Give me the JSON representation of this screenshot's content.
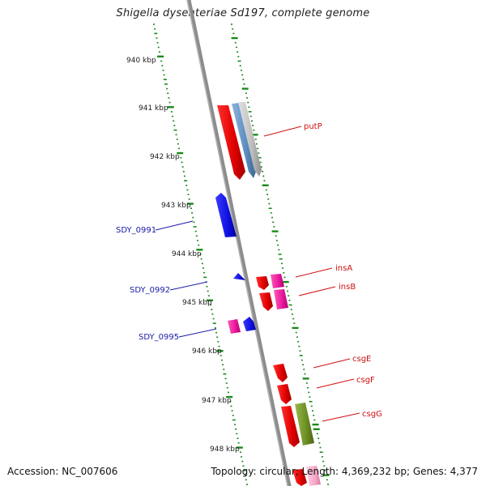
{
  "title": "Shigella dysenteriae Sd197, complete genome",
  "footer": {
    "accession": "Accession: NC_007606",
    "topology": "Topology: circular; Length: 4,369,232 bp; Genes: 4,377"
  },
  "colors": {
    "backbone": "#8c8c8c",
    "tick": "#1a8a1a",
    "blue_gene": "#1010e0",
    "red_gene": "#e00000",
    "pink_gene": "#e8189a",
    "steel_gene": "#5b8dc0",
    "gray_gene": "#b8b8b8",
    "olive_gene": "#6b8e23",
    "light_pink_gene": "#f7a8c8"
  },
  "scale_labels": [
    "940 kbp",
    "941 kbp",
    "942 kbp",
    "943 kbp",
    "944 kbp",
    "945 kbp",
    "946 kbp",
    "947 kbp",
    "948 kbp"
  ],
  "genes_left": [
    {
      "label": "SDY_0991"
    },
    {
      "label": "SDY_0992"
    },
    {
      "label": "SDY_0995"
    }
  ],
  "genes_right": [
    {
      "label": "putP"
    },
    {
      "label": "insA"
    },
    {
      "label": "insB"
    },
    {
      "label": "csgE"
    },
    {
      "label": "csgF"
    },
    {
      "label": "csgG"
    }
  ]
}
